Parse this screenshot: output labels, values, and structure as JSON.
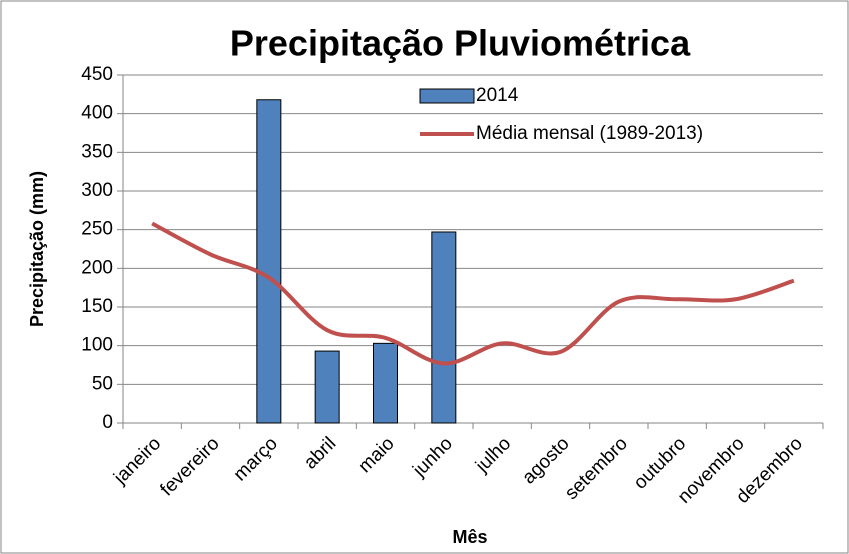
{
  "chart_data": {
    "type": "bar",
    "title": "Precipitação Pluviométrica",
    "x_label": "Mês",
    "y_label": "Precipitação (mm)",
    "categories": [
      "janeiro",
      "fevereiro",
      "março",
      "abril",
      "maio",
      "junho",
      "julho",
      "agosto",
      "setembro",
      "outubro",
      "novembro",
      "dezembro"
    ],
    "series": [
      {
        "name": "2014",
        "type": "bar",
        "color": "#4f81bd",
        "values": [
          null,
          null,
          418,
          93,
          103,
          247,
          null,
          null,
          null,
          null,
          null,
          null
        ]
      },
      {
        "name": "Média mensal (1989-2013)",
        "type": "line",
        "color": "#c0504d",
        "values": [
          258,
          218,
          188,
          120,
          110,
          77,
          103,
          92,
          157,
          160,
          160,
          184
        ]
      }
    ],
    "ylim": [
      0,
      450
    ],
    "yticks": [
      0,
      50,
      100,
      150,
      200,
      250,
      300,
      350,
      400,
      450
    ],
    "grid": true,
    "legend": "top-right"
  }
}
